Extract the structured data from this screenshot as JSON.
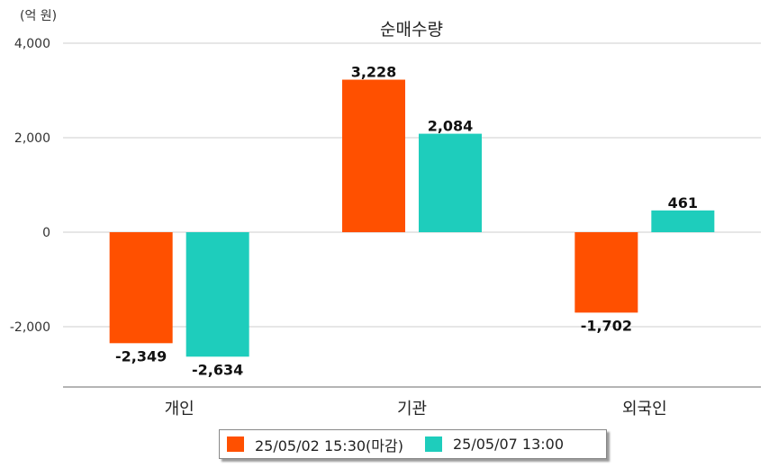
{
  "chart_data": {
    "type": "bar",
    "title": "순매수량",
    "unit_label": "(억 원)",
    "categories": [
      "개인",
      "기관",
      "외국인"
    ],
    "series": [
      {
        "name": "25/05/02 15:30(마감)",
        "color": "#FF5000",
        "values": [
          -2349,
          3228,
          -1702
        ]
      },
      {
        "name": "25/05/07 13:00",
        "color": "#1ECDBC",
        "values": [
          -2634,
          2084,
          461
        ]
      }
    ],
    "value_labels": [
      [
        "-2,349",
        "3,228",
        "-1,702"
      ],
      [
        "-2,634",
        "2,084",
        "461"
      ]
    ],
    "y_ticks": [
      4000,
      2000,
      0,
      -2000
    ],
    "y_tick_labels": [
      "4,000",
      "2,000",
      "0",
      "-2,000"
    ],
    "ylim": [
      -3300,
      4000
    ],
    "grid": true,
    "legend_position": "bottom"
  }
}
